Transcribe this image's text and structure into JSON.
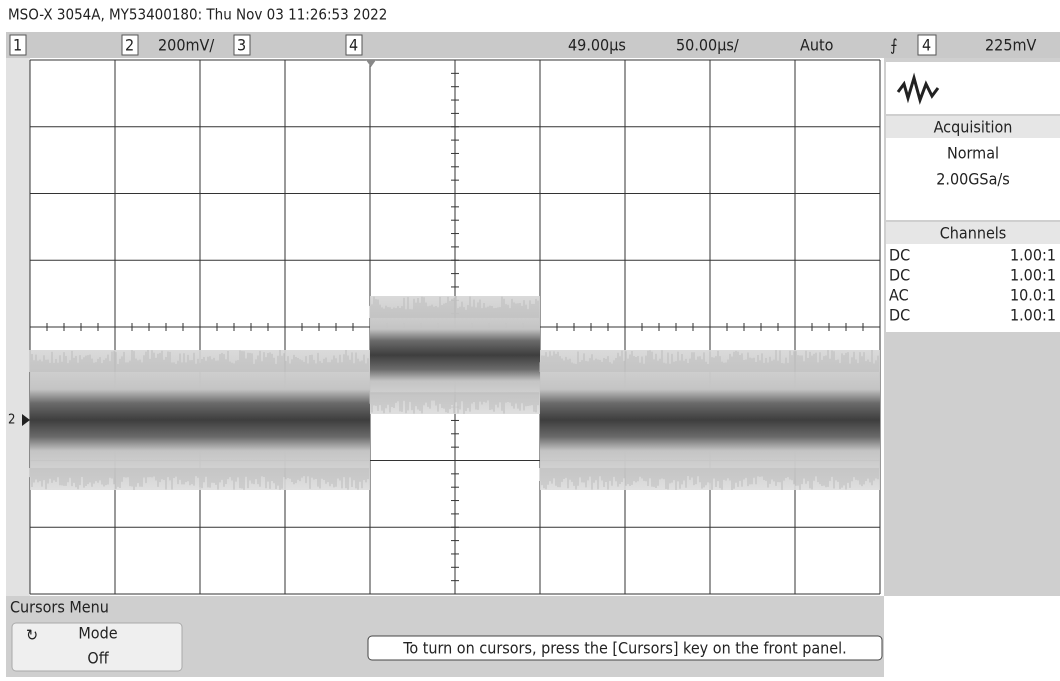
{
  "header": {
    "title": "MSO-X 3054A, MY53400180: Thu Nov 03 11:26:53 2022"
  },
  "status_bar": {
    "ch1": "1",
    "ch2": "2",
    "ch2_scale": "200mV/",
    "ch3": "3",
    "ch4": "4",
    "delay": "49.00µs",
    "timebase": "50.00µs/",
    "trigger_mode": "Auto",
    "trigger_source": "4",
    "trigger_level": "225mV"
  },
  "side_panel": {
    "acquisition": {
      "title": "Acquisition",
      "mode": "Normal",
      "sample_rate": "2.00GSa/s"
    },
    "channels": {
      "title": "Channels",
      "rows": [
        [
          "DC",
          "1.00:1"
        ],
        [
          "DC",
          "1.00:1"
        ],
        [
          "AC",
          "10.0:1"
        ],
        [
          "DC",
          "1.00:1"
        ]
      ]
    }
  },
  "ground_marker": "2",
  "cursors_menu": {
    "title": "Cursors Menu",
    "mode_label": "Mode",
    "mode_value": "Off",
    "hint": "To turn on cursors, press the [Cursors] key on the front panel."
  }
}
